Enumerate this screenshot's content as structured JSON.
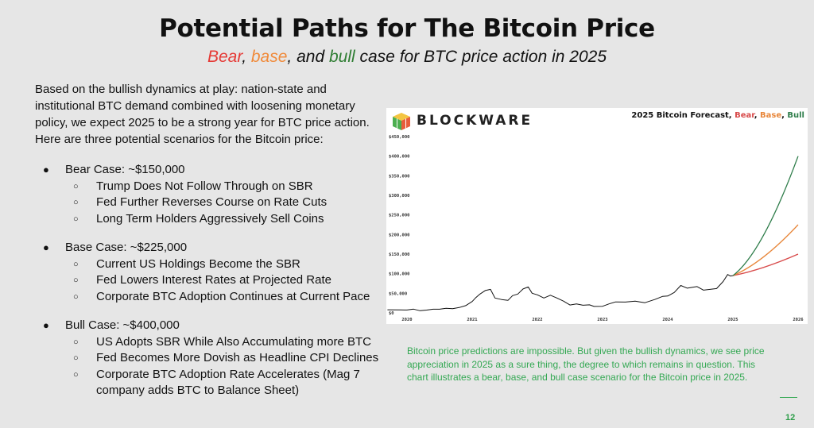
{
  "slide": {
    "title": "Potential Paths for The Bitcoin Price",
    "subtitle": {
      "bear": "Bear",
      "sep1": ", ",
      "base": "base",
      "sep2": ", and ",
      "bull": "bull",
      "rest": " case for BTC price action in 2025"
    },
    "intro": "Based on the bullish dynamics at play: nation-state and institutional BTC demand combined with loosening monetary policy, we expect 2025 to be a strong year for BTC price action. Here are three potential scenarios for the Bitcoin price:",
    "cases": [
      {
        "title": "Bear Case: ~$150,000",
        "points": [
          "Trump Does Not Follow Through on SBR",
          "Fed Further Reverses Course on Rate Cuts",
          "Long Term Holders Aggressively Sell Coins"
        ]
      },
      {
        "title": "Base Case: ~$225,000",
        "points": [
          "Current US Holdings Become the SBR",
          "Fed Lowers Interest Rates at Projected Rate",
          "Corporate BTC Adoption Continues at Current Pace"
        ]
      },
      {
        "title": "Bull Case: ~$400,000",
        "points": [
          "US Adopts SBR While Also Accumulating more BTC",
          "Fed Becomes More Dovish as Headline CPI Declines",
          "Corporate BTC Adoption Rate Accelerates (Mag 7 company adds BTC to Balance Sheet)"
        ]
      }
    ],
    "caption": "Bitcoin price predictions are impossible. But given the bullish dynamics, we see price appreciation in 2025 as a sure thing, the degree to which remains in question. This chart illustrates a bear, base, and bull case scenario for the Bitcoin price in 2025.",
    "page_number": "12",
    "colors": {
      "bear": "#e53935",
      "base": "#f08a3a",
      "bull": "#2e7d32",
      "caption": "#34a853"
    }
  },
  "chart_card": {
    "brand": "BLOCKWARE",
    "logo_icon": "blockware-cube-icon",
    "title_prefix": "2025 Bitcoin Forecast, ",
    "title_bear": "Bear",
    "title_sep1": ", ",
    "title_base": "Base",
    "title_sep2": ", ",
    "title_bull": "Bull"
  },
  "chart_data": {
    "type": "line",
    "title": "2025 Bitcoin Forecast, Bear, Base, Bull",
    "xlabel": "",
    "ylabel": "",
    "xlim": [
      2020,
      2026
    ],
    "ylim": [
      0,
      450000
    ],
    "x_ticks": [
      "2020",
      "2021",
      "2022",
      "2023",
      "2024",
      "2025",
      "2026"
    ],
    "y_ticks": [
      "$0",
      "$50,000",
      "$100,000",
      "$150,000",
      "$200,000",
      "$250,000",
      "$300,000",
      "$350,000",
      "$400,000",
      "$450,000"
    ],
    "grid": false,
    "series": [
      {
        "name": "",
        "color": "#111111",
        "points": [
          [
            2019.7,
            8000
          ],
          [
            2019.9,
            7500
          ],
          [
            2020.0,
            7200
          ],
          [
            2020.1,
            9500
          ],
          [
            2020.2,
            5500
          ],
          [
            2020.3,
            7000
          ],
          [
            2020.4,
            9300
          ],
          [
            2020.5,
            9400
          ],
          [
            2020.6,
            11500
          ],
          [
            2020.7,
            10800
          ],
          [
            2020.8,
            13500
          ],
          [
            2020.9,
            18500
          ],
          [
            2021.0,
            29000
          ],
          [
            2021.05,
            38000
          ],
          [
            2021.12,
            48000
          ],
          [
            2021.2,
            57000
          ],
          [
            2021.28,
            60000
          ],
          [
            2021.35,
            38000
          ],
          [
            2021.45,
            34000
          ],
          [
            2021.55,
            32000
          ],
          [
            2021.62,
            44000
          ],
          [
            2021.7,
            48000
          ],
          [
            2021.78,
            61000
          ],
          [
            2021.86,
            66000
          ],
          [
            2021.92,
            50000
          ],
          [
            2022.0,
            46000
          ],
          [
            2022.1,
            38000
          ],
          [
            2022.2,
            45000
          ],
          [
            2022.3,
            38000
          ],
          [
            2022.4,
            30000
          ],
          [
            2022.5,
            20000
          ],
          [
            2022.6,
            23000
          ],
          [
            2022.7,
            19500
          ],
          [
            2022.8,
            20500
          ],
          [
            2022.87,
            16500
          ],
          [
            2023.0,
            16800
          ],
          [
            2023.1,
            23000
          ],
          [
            2023.2,
            28000
          ],
          [
            2023.35,
            27500
          ],
          [
            2023.5,
            30000
          ],
          [
            2023.65,
            26000
          ],
          [
            2023.8,
            34000
          ],
          [
            2023.92,
            42000
          ],
          [
            2024.0,
            43000
          ],
          [
            2024.1,
            52000
          ],
          [
            2024.2,
            70000
          ],
          [
            2024.3,
            63000
          ],
          [
            2024.45,
            67000
          ],
          [
            2024.55,
            58000
          ],
          [
            2024.65,
            60000
          ],
          [
            2024.75,
            62000
          ],
          [
            2024.85,
            80000
          ],
          [
            2024.92,
            98000
          ],
          [
            2024.96,
            94000
          ],
          [
            2025.0,
            95000
          ]
        ]
      },
      {
        "name": "Bear",
        "color": "#d84a4a",
        "x": [
          2025,
          2025.5,
          2026
        ],
        "y": [
          95000,
          120000,
          150000
        ]
      },
      {
        "name": "Base",
        "color": "#e8873b",
        "x": [
          2025,
          2025.5,
          2026
        ],
        "y": [
          95000,
          148000,
          225000
        ]
      },
      {
        "name": "Bull",
        "color": "#2e7d4a",
        "x": [
          2025,
          2025.5,
          2026
        ],
        "y": [
          95000,
          190000,
          400000
        ]
      }
    ]
  }
}
